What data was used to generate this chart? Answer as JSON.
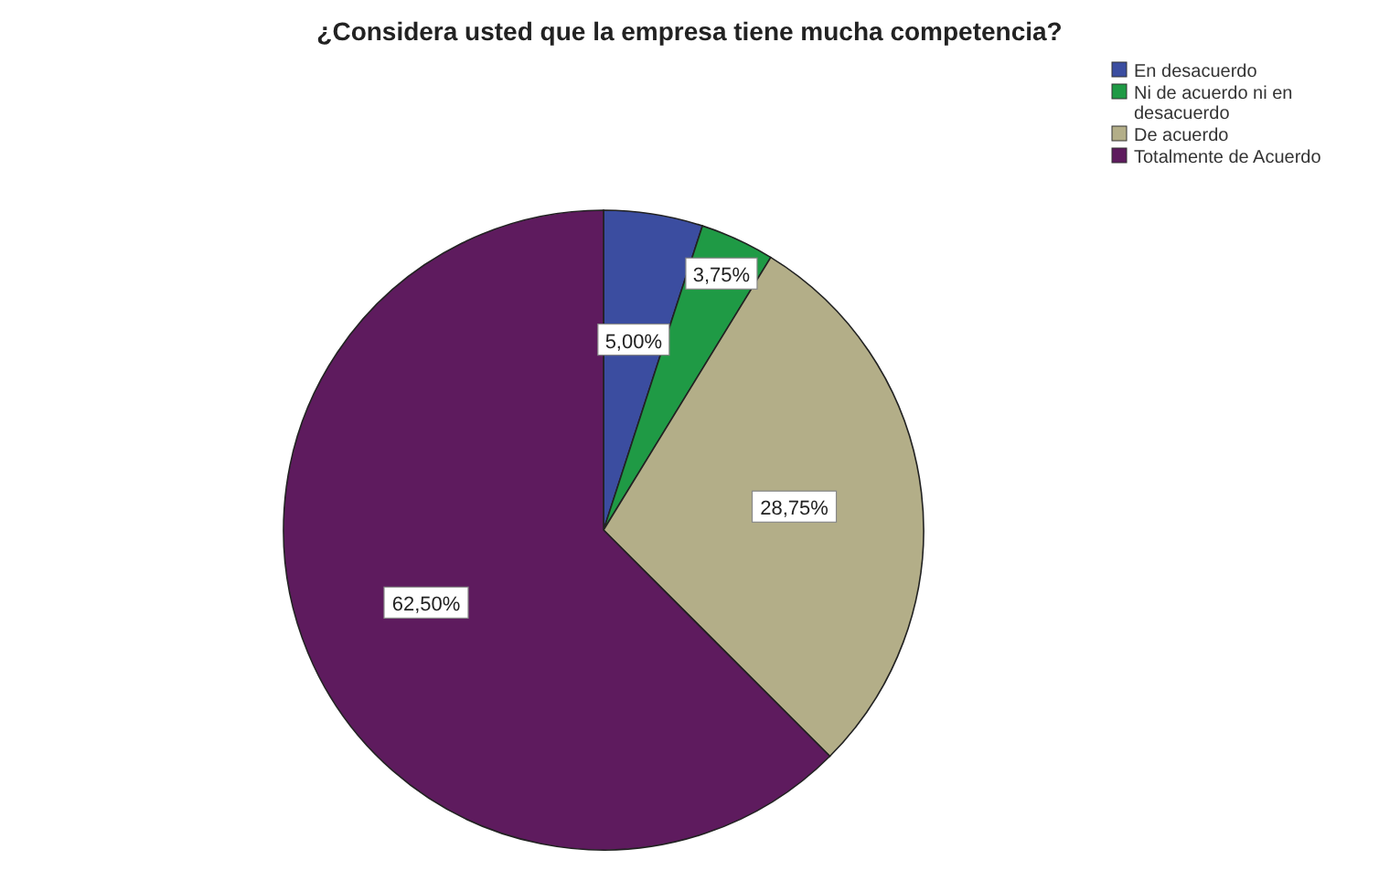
{
  "chart_data": {
    "type": "pie",
    "title": "¿Considera usted que la empresa tiene mucha competencia?",
    "categories": [
      "En desacuerdo",
      "Ni de acuerdo ni en desacuerdo",
      "De acuerdo",
      "Totalmente de Acuerdo"
    ],
    "values": [
      5.0,
      3.75,
      28.75,
      62.5
    ],
    "colors": [
      "#3b4da0",
      "#1f9a45",
      "#b3ae88",
      "#5e1b5e"
    ],
    "value_labels": [
      "5,00%",
      "3,75%",
      "28,75%",
      "62,50%"
    ],
    "legend": "top right"
  }
}
